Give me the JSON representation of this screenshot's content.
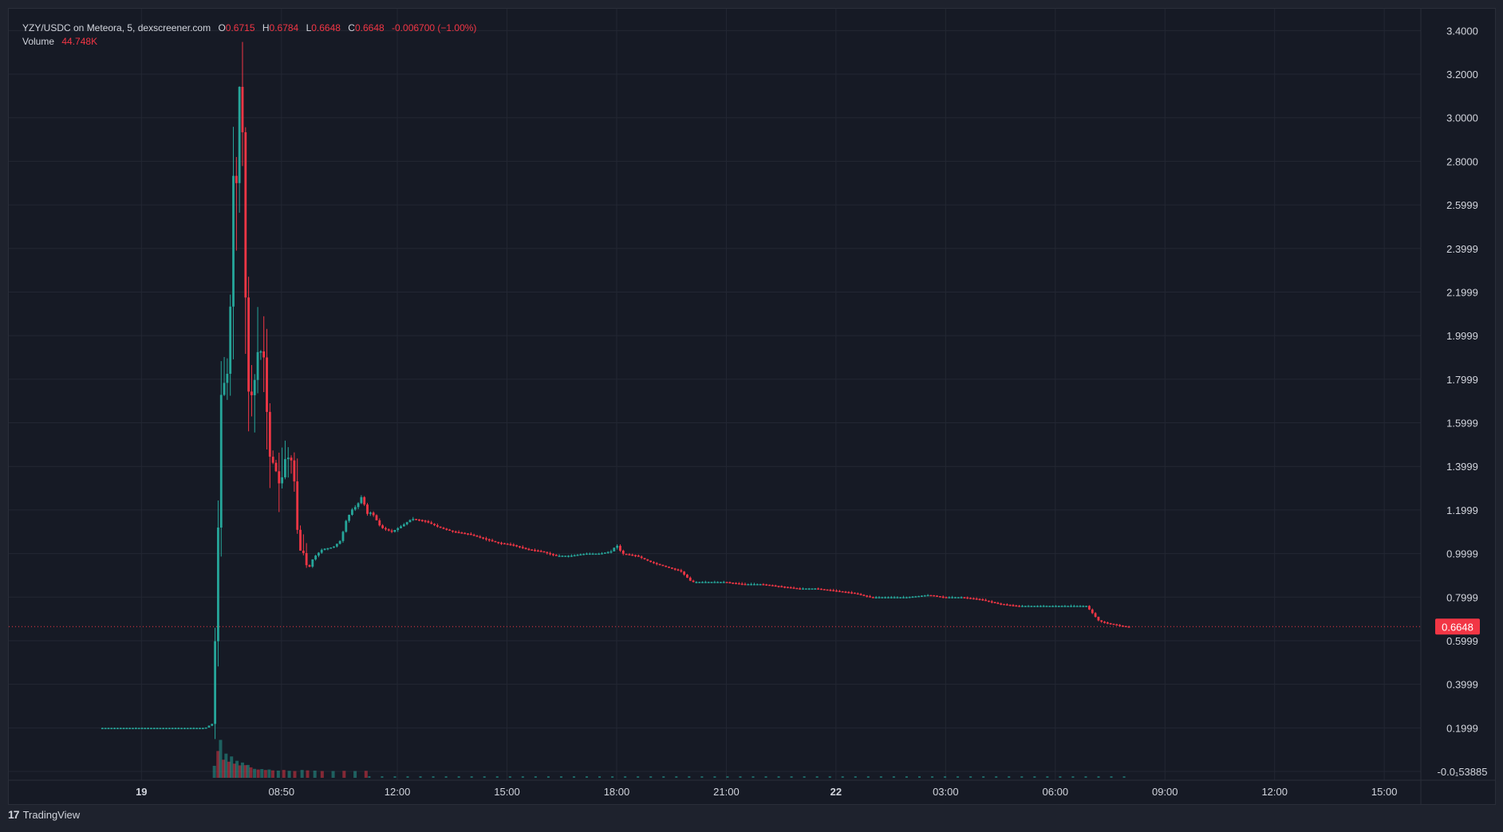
{
  "legend": {
    "symbol": "YZY/USDC on Meteora, 5, dexscreener.com",
    "open_label": "O",
    "open": "0.6715",
    "high_label": "H",
    "high": "0.6784",
    "low_label": "L",
    "low": "0.6648",
    "close_label": "C",
    "close": "0.6648",
    "change": "-0.006700 (−1.00%)",
    "volume_label": "Volume",
    "volume": "44.748K"
  },
  "footer": {
    "brand": "TradingView",
    "logo_glyph": "17"
  },
  "colors": {
    "background": "#161a25",
    "grid": "#232733",
    "text": "#d1d4dc",
    "up": "#26a69a",
    "down": "#f23645",
    "last_price_badge": "#f23645"
  },
  "chart_data": {
    "type": "candlestick",
    "title": "",
    "last_price": 0.6648,
    "last_price_label": "0.6648",
    "y_ticks": [
      {
        "value": 3.4,
        "label": "3.4000"
      },
      {
        "value": 3.2,
        "label": "3.2000"
      },
      {
        "value": 3.0,
        "label": "3.0000"
      },
      {
        "value": 2.8,
        "label": "2.8000"
      },
      {
        "value": 2.6,
        "label": "2.5999"
      },
      {
        "value": 2.4,
        "label": "2.3999"
      },
      {
        "value": 2.2,
        "label": "2.1999"
      },
      {
        "value": 2.0,
        "label": "1.9999"
      },
      {
        "value": 1.8,
        "label": "1.7999"
      },
      {
        "value": 1.6,
        "label": "1.5999"
      },
      {
        "value": 1.4,
        "label": "1.3999"
      },
      {
        "value": 1.2,
        "label": "1.1999"
      },
      {
        "value": 1.0,
        "label": "0.9999"
      },
      {
        "value": 0.8,
        "label": "0.7999"
      },
      {
        "value": 0.6,
        "label": "0.5999"
      },
      {
        "value": 0.4,
        "label": "0.3999"
      },
      {
        "value": 0.2,
        "label": "0.1999"
      },
      {
        "value": 0.0,
        "label": "-0.0₁53885"
      }
    ],
    "x_ticks": [
      {
        "hour": 5.0,
        "label": "19",
        "bold": true
      },
      {
        "hour": 8.83,
        "label": "08:50",
        "bold": false
      },
      {
        "hour": 12.0,
        "label": "12:00",
        "bold": false
      },
      {
        "hour": 15.0,
        "label": "15:00",
        "bold": false
      },
      {
        "hour": 18.0,
        "label": "18:00",
        "bold": false
      },
      {
        "hour": 21.0,
        "label": "21:00",
        "bold": false
      },
      {
        "hour": 24.0,
        "label": "22",
        "bold": true
      },
      {
        "hour": 27.0,
        "label": "03:00",
        "bold": false
      },
      {
        "hour": 30.0,
        "label": "06:00",
        "bold": false
      },
      {
        "hour": 33.0,
        "label": "09:00",
        "bold": false
      },
      {
        "hour": 36.0,
        "label": "12:00",
        "bold": false
      },
      {
        "hour": 39.0,
        "label": "15:00",
        "bold": false
      }
    ],
    "x_range_hours": [
      1.37,
      40.0
    ],
    "y_range": [
      -0.04,
      3.5
    ],
    "price_path": [
      [
        3.9,
        0.2
      ],
      [
        6.8,
        0.2
      ],
      [
        7.0,
        0.22
      ],
      [
        7.12,
        0.9
      ],
      [
        7.25,
        1.85
      ],
      [
        7.35,
        1.75
      ],
      [
        7.45,
        1.9
      ],
      [
        7.55,
        2.6
      ],
      [
        7.6,
        3.0
      ],
      [
        7.65,
        2.7
      ],
      [
        7.72,
        3.15
      ],
      [
        7.8,
        3.1
      ],
      [
        7.85,
        2.6
      ],
      [
        7.95,
        1.75
      ],
      [
        8.1,
        1.72
      ],
      [
        8.25,
        1.95
      ],
      [
        8.4,
        1.9
      ],
      [
        8.55,
        1.45
      ],
      [
        8.7,
        1.4
      ],
      [
        8.85,
        1.3
      ],
      [
        9.0,
        1.45
      ],
      [
        9.2,
        1.42
      ],
      [
        9.35,
        1.02
      ],
      [
        9.5,
        1.0
      ],
      [
        9.6,
        0.92
      ],
      [
        9.75,
        0.98
      ],
      [
        10.0,
        1.02
      ],
      [
        10.3,
        1.03
      ],
      [
        10.5,
        1.06
      ],
      [
        10.65,
        1.15
      ],
      [
        10.8,
        1.2
      ],
      [
        10.95,
        1.22
      ],
      [
        11.1,
        1.27
      ],
      [
        11.2,
        1.18
      ],
      [
        11.35,
        1.19
      ],
      [
        11.6,
        1.12
      ],
      [
        11.9,
        1.1
      ],
      [
        12.2,
        1.13
      ],
      [
        12.45,
        1.16
      ],
      [
        12.8,
        1.15
      ],
      [
        13.2,
        1.12
      ],
      [
        13.6,
        1.1
      ],
      [
        14.0,
        1.09
      ],
      [
        14.4,
        1.07
      ],
      [
        14.8,
        1.05
      ],
      [
        15.2,
        1.04
      ],
      [
        15.6,
        1.02
      ],
      [
        16.0,
        1.01
      ],
      [
        16.4,
        0.99
      ],
      [
        16.8,
        0.99
      ],
      [
        17.2,
        1.0
      ],
      [
        17.6,
        1.0
      ],
      [
        17.9,
        1.01
      ],
      [
        18.05,
        1.04
      ],
      [
        18.2,
        1.0
      ],
      [
        18.6,
        0.99
      ],
      [
        19.0,
        0.96
      ],
      [
        19.4,
        0.94
      ],
      [
        19.8,
        0.92
      ],
      [
        20.1,
        0.87
      ],
      [
        20.5,
        0.87
      ],
      [
        21.0,
        0.87
      ],
      [
        21.5,
        0.86
      ],
      [
        22.0,
        0.86
      ],
      [
        22.5,
        0.85
      ],
      [
        23.0,
        0.84
      ],
      [
        23.5,
        0.84
      ],
      [
        24.0,
        0.83
      ],
      [
        24.5,
        0.82
      ],
      [
        25.0,
        0.8
      ],
      [
        25.5,
        0.8
      ],
      [
        26.0,
        0.8
      ],
      [
        26.6,
        0.81
      ],
      [
        27.0,
        0.8
      ],
      [
        27.5,
        0.8
      ],
      [
        28.0,
        0.79
      ],
      [
        28.5,
        0.77
      ],
      [
        29.0,
        0.76
      ],
      [
        29.5,
        0.76
      ],
      [
        30.0,
        0.76
      ],
      [
        30.5,
        0.76
      ],
      [
        30.9,
        0.76
      ],
      [
        31.1,
        0.72
      ],
      [
        31.25,
        0.69
      ],
      [
        31.5,
        0.68
      ],
      [
        31.8,
        0.67
      ],
      [
        32.0,
        0.665
      ]
    ],
    "volume_series": [
      [
        6.95,
        0.026
      ],
      [
        7.05,
        0.094
      ],
      [
        7.12,
        0.145
      ],
      [
        7.2,
        0.054
      ],
      [
        7.27,
        0.082
      ],
      [
        7.35,
        0.045
      ],
      [
        7.42,
        0.069
      ],
      [
        7.5,
        0.036
      ],
      [
        7.57,
        0.049
      ],
      [
        7.65,
        0.028
      ],
      [
        7.72,
        0.041
      ],
      [
        7.8,
        0.029
      ],
      [
        7.87,
        0.03
      ],
      [
        7.95,
        0.019
      ],
      [
        8.05,
        0.012
      ],
      [
        8.15,
        0.009
      ],
      [
        8.25,
        0.011
      ],
      [
        8.35,
        0.007
      ],
      [
        8.45,
        0.009
      ],
      [
        8.55,
        0.005
      ],
      [
        8.7,
        0.004
      ],
      [
        8.85,
        0.007
      ],
      [
        9.0,
        0.003
      ],
      [
        9.15,
        0.002
      ],
      [
        9.35,
        0.007
      ],
      [
        9.5,
        0.005
      ],
      [
        9.7,
        0.004
      ],
      [
        9.9,
        0.002
      ],
      [
        10.2,
        0.002
      ],
      [
        10.5,
        0.003
      ],
      [
        10.8,
        0.002
      ],
      [
        11.1,
        0.003
      ]
    ]
  }
}
